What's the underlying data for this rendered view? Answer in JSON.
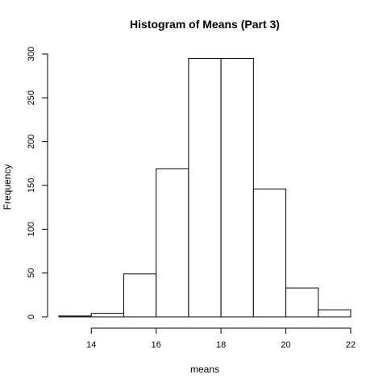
{
  "chart_data": {
    "type": "bar",
    "title": "Histogram of Means (Part 3)",
    "xlabel": "means",
    "ylabel": "Frequency",
    "bins": [
      {
        "start": 13,
        "end": 14,
        "count": 1
      },
      {
        "start": 14,
        "end": 15,
        "count": 4
      },
      {
        "start": 15,
        "end": 16,
        "count": 49
      },
      {
        "start": 16,
        "end": 17,
        "count": 169
      },
      {
        "start": 17,
        "end": 18,
        "count": 295
      },
      {
        "start": 18,
        "end": 19,
        "count": 295
      },
      {
        "start": 19,
        "end": 20,
        "count": 146
      },
      {
        "start": 20,
        "end": 21,
        "count": 33
      },
      {
        "start": 21,
        "end": 22,
        "count": 8
      }
    ],
    "xlim": [
      13,
      22
    ],
    "ylim": [
      0,
      300
    ],
    "xticks": [
      14,
      16,
      18,
      20,
      22
    ],
    "yticks": [
      0,
      50,
      100,
      150,
      200,
      250,
      300
    ],
    "grid": false,
    "colors": {
      "bar_fill": "#ffffff",
      "bar_stroke": "#000000"
    }
  }
}
